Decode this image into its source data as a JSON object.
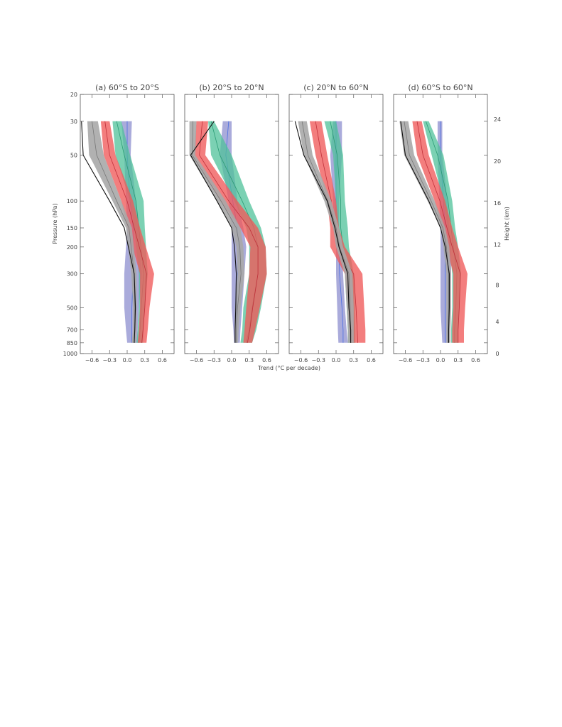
{
  "figure": {
    "xlabel": "Trend (°C per decade)",
    "ylabel_left": "Pressure (hPa)",
    "ylabel_right": "Height (km)",
    "panel_titles": [
      "(a) 60°S to 20°S",
      "(b) 20°S to 20°N",
      "(c) 20°N to 60°N",
      "(d) 60°S to 60°N"
    ]
  },
  "colors": {
    "blue_band": "#8d8fcf",
    "blue_line": "#4a6ee0",
    "green_band": "#4fc29a",
    "green_line": "#2a9a74",
    "red_band": "#ef5a5a",
    "red_line": "#c0303a",
    "grey_band": "#a8a8a8",
    "black_line": "#111111"
  },
  "chart_data": [
    {
      "type": "line",
      "title": "(a) 60°S to 20°S",
      "xlabel": "Trend (°C per decade)",
      "ylabel": "Pressure (hPa)",
      "xlim": [
        -0.8,
        0.8
      ],
      "xticks": [
        -0.6,
        -0.3,
        0.0,
        0.3,
        0.6
      ],
      "xticklabels": [
        "−0.6",
        "−0.3",
        "0.0",
        "0.3",
        "0.6"
      ],
      "y_log_scale": true,
      "yticks": [
        20,
        30,
        50,
        100,
        150,
        200,
        300,
        500,
        700,
        850,
        1000
      ],
      "yticklabels": [
        "20",
        "30",
        "50",
        "100",
        "150",
        "200",
        "300",
        "500",
        "700",
        "850",
        "1000"
      ],
      "ylim": [
        1000,
        20
      ],
      "levels": [
        30,
        50,
        100,
        150,
        300,
        500,
        700,
        850
      ],
      "series": [
        {
          "color": "blue",
          "low": [
            -0.1,
            -0.05,
            -0.02,
            0.0,
            -0.05,
            -0.05,
            -0.02,
            0.0
          ],
          "high": [
            0.08,
            0.06,
            0.15,
            0.2,
            0.25,
            0.2,
            0.18,
            0.18
          ],
          "mid": [
            0.0,
            0.0,
            0.05,
            0.1,
            0.1,
            0.08,
            0.08,
            0.08
          ]
        },
        {
          "color": "green",
          "low": [
            -0.25,
            -0.2,
            0.05,
            0.12,
            0.2,
            0.2,
            0.18,
            0.16
          ],
          "high": [
            -0.1,
            0.05,
            0.28,
            0.3,
            0.35,
            0.3,
            0.28,
            0.27
          ],
          "mid": [
            -0.18,
            -0.05,
            0.15,
            0.2,
            0.28,
            0.24,
            0.22,
            0.2
          ]
        },
        {
          "color": "red",
          "low": [
            -0.45,
            -0.4,
            -0.1,
            0.0,
            0.22,
            0.22,
            0.2,
            0.18
          ],
          "high": [
            -0.3,
            -0.2,
            0.1,
            0.22,
            0.46,
            0.38,
            0.35,
            0.33
          ],
          "mid": [
            -0.38,
            -0.3,
            0.0,
            0.12,
            0.33,
            0.3,
            0.27,
            0.25
          ]
        },
        {
          "color": "grey",
          "low": [
            -0.68,
            -0.65,
            -0.25,
            -0.02,
            0.07,
            0.1,
            0.1,
            0.08
          ],
          "high": [
            -0.5,
            -0.4,
            -0.1,
            0.08,
            0.16,
            0.16,
            0.16,
            0.15
          ],
          "mid": [
            -0.6,
            -0.52,
            -0.18,
            0.03,
            0.12,
            0.13,
            0.13,
            0.12
          ]
        },
        {
          "color": "black",
          "values": [
            -0.78,
            -0.75,
            -0.3,
            -0.05,
            0.12,
            0.14,
            0.13,
            0.12
          ]
        }
      ]
    },
    {
      "type": "line",
      "title": "(b) 20°S to 20°N",
      "xlabel": "Trend (°C per decade)",
      "ylabel": "",
      "xlim": [
        -0.8,
        0.8
      ],
      "xticks": [
        -0.6,
        -0.3,
        0.0,
        0.3,
        0.6
      ],
      "xticklabels": [
        "−0.6",
        "−0.3",
        "0.0",
        "0.3",
        "0.6"
      ],
      "y_log_scale": true,
      "yticks": [
        20,
        30,
        50,
        100,
        150,
        200,
        300,
        500,
        700,
        850,
        1000
      ],
      "ylim": [
        1000,
        20
      ],
      "levels": [
        30,
        50,
        100,
        150,
        200,
        300,
        500,
        700,
        850
      ],
      "series": [
        {
          "color": "blue",
          "low": [
            -0.15,
            -0.2,
            -0.05,
            0.0,
            0.0,
            0.0,
            0.0,
            0.03,
            0.04
          ],
          "high": [
            0.0,
            0.0,
            0.1,
            0.2,
            0.25,
            0.22,
            0.18,
            0.15,
            0.14
          ],
          "mid": [
            -0.05,
            -0.1,
            0.02,
            0.1,
            0.12,
            0.1,
            0.08,
            0.08,
            0.08
          ]
        },
        {
          "color": "green",
          "low": [
            -0.4,
            -0.35,
            0.05,
            0.25,
            0.3,
            0.3,
            0.2,
            0.18,
            0.15
          ],
          "high": [
            -0.3,
            0.0,
            0.3,
            0.5,
            0.58,
            0.6,
            0.5,
            0.42,
            0.35
          ],
          "mid": [
            -0.35,
            -0.2,
            0.18,
            0.38,
            0.45,
            0.45,
            0.35,
            0.3,
            0.25
          ]
        },
        {
          "color": "red",
          "low": [
            -0.6,
            -0.65,
            -0.2,
            0.15,
            0.32,
            0.3,
            0.25,
            0.22,
            0.2
          ],
          "high": [
            -0.4,
            -0.45,
            0.1,
            0.45,
            0.58,
            0.6,
            0.48,
            0.4,
            0.35
          ],
          "mid": [
            -0.5,
            -0.55,
            -0.05,
            0.3,
            0.45,
            0.45,
            0.36,
            0.31,
            0.27
          ]
        },
        {
          "color": "grey",
          "low": [
            -0.72,
            -0.72,
            -0.25,
            0.0,
            0.08,
            0.1,
            0.06,
            0.05,
            0.05
          ],
          "high": [
            -0.6,
            -0.62,
            -0.1,
            0.15,
            0.2,
            0.22,
            0.15,
            0.12,
            0.11
          ],
          "mid": [
            -0.66,
            -0.67,
            -0.18,
            0.08,
            0.14,
            0.16,
            0.1,
            0.08,
            0.08
          ]
        },
        {
          "color": "black",
          "values": [
            -0.3,
            -0.7,
            -0.25,
            0.0,
            0.05,
            0.08,
            0.07,
            0.06,
            0.06
          ]
        }
      ]
    },
    {
      "type": "line",
      "title": "(c) 20°N to 60°N",
      "xlabel": "Trend (°C per decade)",
      "ylabel": "",
      "xlim": [
        -0.8,
        0.8
      ],
      "xticks": [
        -0.6,
        -0.3,
        0.0,
        0.3,
        0.6
      ],
      "xticklabels": [
        "−0.6",
        "−0.3",
        "0.0",
        "0.3",
        "0.6"
      ],
      "y_log_scale": true,
      "yticks": [
        20,
        30,
        50,
        100,
        150,
        200,
        300,
        500,
        700,
        850,
        1000
      ],
      "ylim": [
        1000,
        20
      ],
      "levels": [
        30,
        50,
        100,
        150,
        200,
        300,
        500,
        700,
        850
      ],
      "series": [
        {
          "color": "blue",
          "low": [
            -0.05,
            -0.1,
            -0.05,
            -0.05,
            0.0,
            0.0,
            0.02,
            0.03,
            0.04
          ],
          "high": [
            0.1,
            0.1,
            0.05,
            0.05,
            0.1,
            0.12,
            0.15,
            0.18,
            0.2
          ],
          "mid": [
            0.0,
            0.0,
            0.0,
            0.0,
            0.05,
            0.06,
            0.1,
            0.12,
            0.12
          ]
        },
        {
          "color": "green",
          "low": [
            -0.2,
            -0.05,
            0.0,
            -0.05,
            0.05,
            0.15,
            0.18,
            0.2,
            0.2
          ],
          "high": [
            0.0,
            0.12,
            0.15,
            0.2,
            0.22,
            0.3,
            0.32,
            0.33,
            0.33
          ],
          "mid": [
            -0.1,
            0.02,
            0.08,
            0.08,
            0.12,
            0.22,
            0.25,
            0.26,
            0.26
          ]
        },
        {
          "color": "red",
          "low": [
            -0.45,
            -0.35,
            -0.15,
            -0.1,
            -0.1,
            0.15,
            0.2,
            0.22,
            0.24
          ],
          "high": [
            -0.25,
            -0.15,
            0.0,
            0.05,
            0.15,
            0.45,
            0.48,
            0.5,
            0.5
          ],
          "mid": [
            -0.35,
            -0.25,
            -0.08,
            -0.03,
            0.02,
            0.3,
            0.34,
            0.36,
            0.37
          ]
        },
        {
          "color": "grey",
          "low": [
            -0.65,
            -0.55,
            -0.2,
            -0.05,
            0.0,
            0.15,
            0.18,
            0.2,
            0.2
          ],
          "high": [
            -0.5,
            -0.4,
            -0.08,
            0.05,
            0.12,
            0.28,
            0.3,
            0.3,
            0.3
          ],
          "mid": [
            -0.58,
            -0.48,
            -0.14,
            0.0,
            0.06,
            0.22,
            0.24,
            0.25,
            0.25
          ]
        },
        {
          "color": "black",
          "values": [
            -0.7,
            -0.55,
            -0.15,
            -0.02,
            0.05,
            0.2,
            0.22,
            0.25,
            0.25
          ]
        }
      ]
    },
    {
      "type": "line",
      "title": "(d) 60°S to 60°N",
      "xlabel": "Trend (°C per decade)",
      "ylabel": "Height (km)",
      "xlim": [
        -0.8,
        0.8
      ],
      "xticks": [
        -0.6,
        -0.3,
        0.0,
        0.3,
        0.6
      ],
      "xticklabels": [
        "−0.6",
        "−0.3",
        "0.0",
        "0.3",
        "0.6"
      ],
      "y_log_scale": true,
      "yticks": [
        20,
        30,
        50,
        100,
        150,
        200,
        300,
        500,
        700,
        850,
        1000
      ],
      "ylim": [
        1000,
        20
      ],
      "right_axis_label": "Height (km)",
      "right_yticks_km": [
        0,
        4,
        8,
        12,
        16,
        20,
        24
      ],
      "right_yticklabels": [
        "0",
        "4",
        "8",
        "12",
        "16",
        "20",
        "24"
      ],
      "levels": [
        30,
        50,
        100,
        150,
        200,
        300,
        500,
        700,
        850
      ],
      "series": [
        {
          "color": "blue",
          "low": [
            -0.05,
            -0.05,
            -0.02,
            0.0,
            0.0,
            0.0,
            0.0,
            0.02,
            0.03
          ],
          "high": [
            0.03,
            0.03,
            0.12,
            0.15,
            0.18,
            0.18,
            0.16,
            0.15,
            0.14
          ],
          "mid": [
            0.0,
            0.0,
            0.05,
            0.08,
            0.08,
            0.08,
            0.08,
            0.08,
            0.08
          ]
        },
        {
          "color": "green",
          "low": [
            -0.3,
            -0.15,
            0.05,
            0.12,
            0.15,
            0.2,
            0.2,
            0.18,
            0.18
          ],
          "high": [
            -0.2,
            0.05,
            0.2,
            0.25,
            0.3,
            0.35,
            0.32,
            0.3,
            0.3
          ],
          "mid": [
            -0.25,
            -0.05,
            0.13,
            0.18,
            0.22,
            0.28,
            0.26,
            0.24,
            0.24
          ]
        },
        {
          "color": "red",
          "low": [
            -0.48,
            -0.4,
            -0.1,
            0.02,
            0.1,
            0.22,
            0.22,
            0.2,
            0.2
          ],
          "high": [
            -0.32,
            -0.2,
            0.08,
            0.2,
            0.3,
            0.46,
            0.42,
            0.4,
            0.4
          ],
          "mid": [
            -0.4,
            -0.3,
            -0.01,
            0.11,
            0.2,
            0.34,
            0.32,
            0.3,
            0.3
          ]
        },
        {
          "color": "grey",
          "low": [
            -0.7,
            -0.62,
            -0.22,
            0.0,
            0.05,
            0.1,
            0.1,
            0.1,
            0.1
          ],
          "high": [
            -0.55,
            -0.45,
            -0.1,
            0.08,
            0.15,
            0.18,
            0.18,
            0.17,
            0.17
          ],
          "mid": [
            -0.62,
            -0.53,
            -0.16,
            0.04,
            0.1,
            0.14,
            0.14,
            0.13,
            0.13
          ]
        },
        {
          "color": "black",
          "values": [
            -0.68,
            -0.6,
            -0.2,
            0.0,
            0.08,
            0.15,
            0.15,
            0.14,
            0.14
          ]
        }
      ]
    }
  ]
}
